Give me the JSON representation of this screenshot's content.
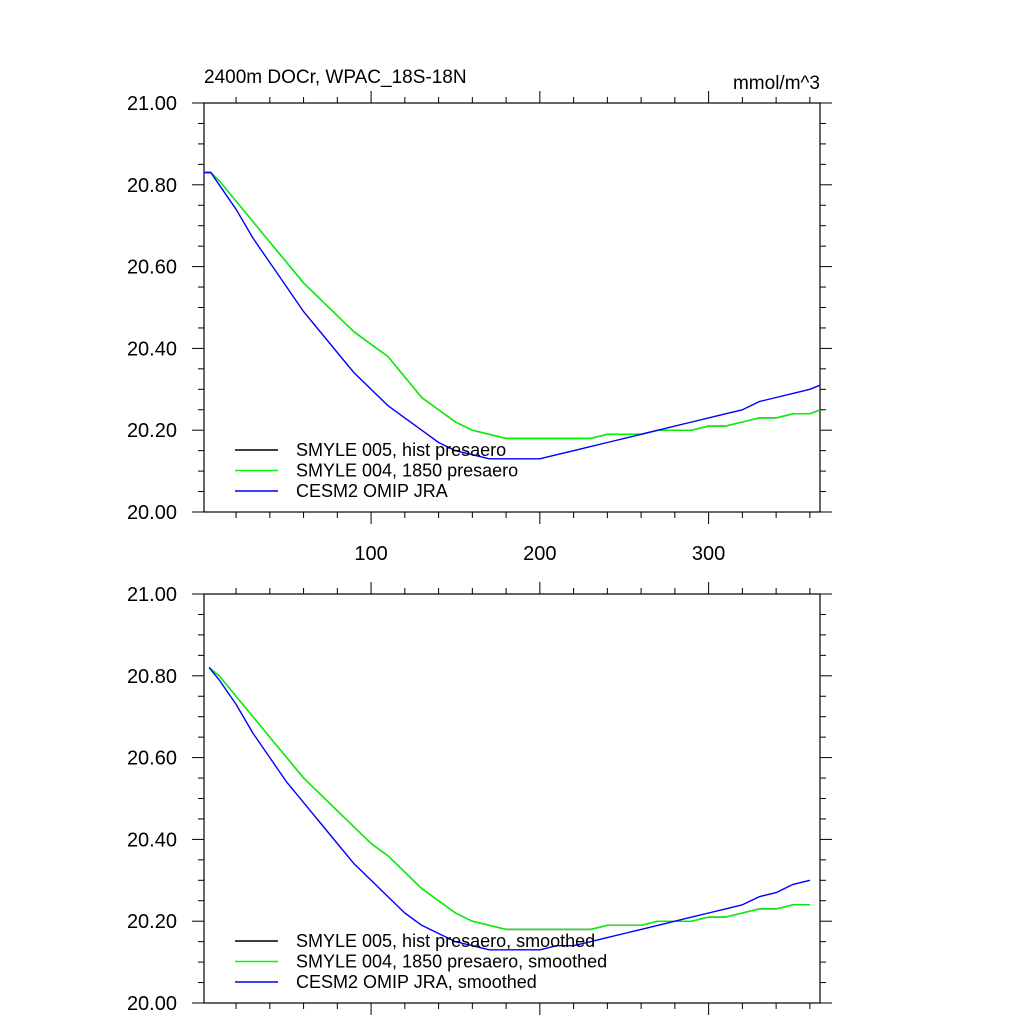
{
  "chart_data": [
    {
      "type": "line",
      "title": "2400m DOCr, WPAC_18S-18N",
      "units": "mmol/m^3",
      "xlim": [
        1,
        366
      ],
      "ylim": [
        20.0,
        21.0
      ],
      "xticks": [
        100,
        200,
        300
      ],
      "xtick_labels": [
        "100",
        "200",
        "300"
      ],
      "yticks": [
        20.0,
        20.2,
        20.4,
        20.6,
        20.8,
        21.0
      ],
      "ytick_labels": [
        "20.00",
        "20.20",
        "20.40",
        "20.60",
        "20.80",
        "21.00"
      ],
      "grid": false,
      "legend_position": "bottom-left",
      "series": [
        {
          "name": "SMYLE 005, hist presaero",
          "color": "#000000",
          "x": [
            1,
            5,
            10,
            20,
            30,
            40,
            50,
            60,
            70,
            80,
            90,
            100,
            110,
            120,
            130,
            140,
            150,
            160,
            170,
            180,
            190,
            200,
            210,
            220,
            230,
            240,
            250,
            260,
            270,
            280,
            290,
            300,
            310,
            320,
            330,
            340,
            350,
            360,
            366
          ],
          "y": [
            20.83,
            20.83,
            20.81,
            20.76,
            20.71,
            20.66,
            20.61,
            20.56,
            20.52,
            20.48,
            20.44,
            20.41,
            20.38,
            20.33,
            20.28,
            20.25,
            20.22,
            20.2,
            20.19,
            20.18,
            20.18,
            20.18,
            20.18,
            20.18,
            20.18,
            20.19,
            20.19,
            20.19,
            20.2,
            20.2,
            20.2,
            20.21,
            20.21,
            20.22,
            20.23,
            20.23,
            20.24,
            20.24,
            20.25
          ]
        },
        {
          "name": "SMYLE 004, 1850 presaero",
          "color": "#00ff00",
          "x": [
            1,
            5,
            10,
            20,
            30,
            40,
            50,
            60,
            70,
            80,
            90,
            100,
            110,
            120,
            130,
            140,
            150,
            160,
            170,
            180,
            190,
            200,
            210,
            220,
            230,
            240,
            250,
            260,
            270,
            280,
            290,
            300,
            310,
            320,
            330,
            340,
            350,
            360,
            366
          ],
          "y": [
            20.83,
            20.83,
            20.81,
            20.76,
            20.71,
            20.66,
            20.61,
            20.56,
            20.52,
            20.48,
            20.44,
            20.41,
            20.38,
            20.33,
            20.28,
            20.25,
            20.22,
            20.2,
            20.19,
            20.18,
            20.18,
            20.18,
            20.18,
            20.18,
            20.18,
            20.19,
            20.19,
            20.19,
            20.2,
            20.2,
            20.2,
            20.21,
            20.21,
            20.22,
            20.23,
            20.23,
            20.24,
            20.24,
            20.25
          ]
        },
        {
          "name": "CESM2 OMIP JRA",
          "color": "#0000ff",
          "x": [
            1,
            5,
            10,
            20,
            30,
            40,
            50,
            60,
            70,
            80,
            90,
            100,
            110,
            120,
            130,
            140,
            150,
            160,
            170,
            180,
            190,
            200,
            210,
            220,
            230,
            240,
            250,
            260,
            270,
            280,
            290,
            300,
            310,
            320,
            330,
            340,
            350,
            360,
            366
          ],
          "y": [
            20.83,
            20.83,
            20.8,
            20.74,
            20.67,
            20.61,
            20.55,
            20.49,
            20.44,
            20.39,
            20.34,
            20.3,
            20.26,
            20.23,
            20.2,
            20.17,
            20.15,
            20.14,
            20.13,
            20.13,
            20.13,
            20.13,
            20.14,
            20.15,
            20.16,
            20.17,
            20.18,
            20.19,
            20.2,
            20.21,
            20.22,
            20.23,
            20.24,
            20.25,
            20.27,
            20.28,
            20.29,
            20.3,
            20.31
          ]
        }
      ]
    },
    {
      "type": "line",
      "xlim": [
        1,
        366
      ],
      "ylim": [
        20.0,
        21.0
      ],
      "yticks": [
        20.0,
        20.2,
        20.4,
        20.6,
        20.8,
        21.0
      ],
      "ytick_labels": [
        "20.00",
        "20.20",
        "20.40",
        "20.60",
        "20.80",
        "21.00"
      ],
      "grid": false,
      "legend_position": "bottom-left",
      "series": [
        {
          "name": "SMYLE 005, hist presaero, smoothed",
          "color": "#000000",
          "x": [
            4,
            10,
            20,
            30,
            40,
            50,
            60,
            70,
            80,
            90,
            100,
            110,
            120,
            130,
            140,
            150,
            160,
            170,
            180,
            190,
            200,
            210,
            220,
            230,
            240,
            250,
            260,
            270,
            280,
            290,
            300,
            310,
            320,
            330,
            340,
            350,
            360
          ],
          "y": [
            20.82,
            20.8,
            20.75,
            20.7,
            20.65,
            20.6,
            20.55,
            20.51,
            20.47,
            20.43,
            20.39,
            20.36,
            20.32,
            20.28,
            20.25,
            20.22,
            20.2,
            20.19,
            20.18,
            20.18,
            20.18,
            20.18,
            20.18,
            20.18,
            20.19,
            20.19,
            20.19,
            20.2,
            20.2,
            20.2,
            20.21,
            20.21,
            20.22,
            20.23,
            20.23,
            20.24,
            20.24
          ]
        },
        {
          "name": "SMYLE 004, 1850 presaero, smoothed",
          "color": "#00ff00",
          "x": [
            4,
            10,
            20,
            30,
            40,
            50,
            60,
            70,
            80,
            90,
            100,
            110,
            120,
            130,
            140,
            150,
            160,
            170,
            180,
            190,
            200,
            210,
            220,
            230,
            240,
            250,
            260,
            270,
            280,
            290,
            300,
            310,
            320,
            330,
            340,
            350,
            360
          ],
          "y": [
            20.82,
            20.8,
            20.75,
            20.7,
            20.65,
            20.6,
            20.55,
            20.51,
            20.47,
            20.43,
            20.39,
            20.36,
            20.32,
            20.28,
            20.25,
            20.22,
            20.2,
            20.19,
            20.18,
            20.18,
            20.18,
            20.18,
            20.18,
            20.18,
            20.19,
            20.19,
            20.19,
            20.2,
            20.2,
            20.2,
            20.21,
            20.21,
            20.22,
            20.23,
            20.23,
            20.24,
            20.24
          ]
        },
        {
          "name": "CESM2 OMIP JRA, smoothed",
          "color": "#0000ff",
          "x": [
            4,
            10,
            20,
            30,
            40,
            50,
            60,
            70,
            80,
            90,
            100,
            110,
            120,
            130,
            140,
            150,
            160,
            170,
            180,
            190,
            200,
            210,
            220,
            230,
            240,
            250,
            260,
            270,
            280,
            290,
            300,
            310,
            320,
            330,
            340,
            350,
            360
          ],
          "y": [
            20.82,
            20.79,
            20.73,
            20.66,
            20.6,
            20.54,
            20.49,
            20.44,
            20.39,
            20.34,
            20.3,
            20.26,
            20.22,
            20.19,
            20.17,
            20.15,
            20.14,
            20.13,
            20.13,
            20.13,
            20.13,
            20.14,
            20.14,
            20.15,
            20.16,
            20.17,
            20.18,
            20.19,
            20.2,
            20.21,
            20.22,
            20.23,
            20.24,
            20.26,
            20.27,
            20.29,
            20.3
          ]
        }
      ]
    }
  ]
}
